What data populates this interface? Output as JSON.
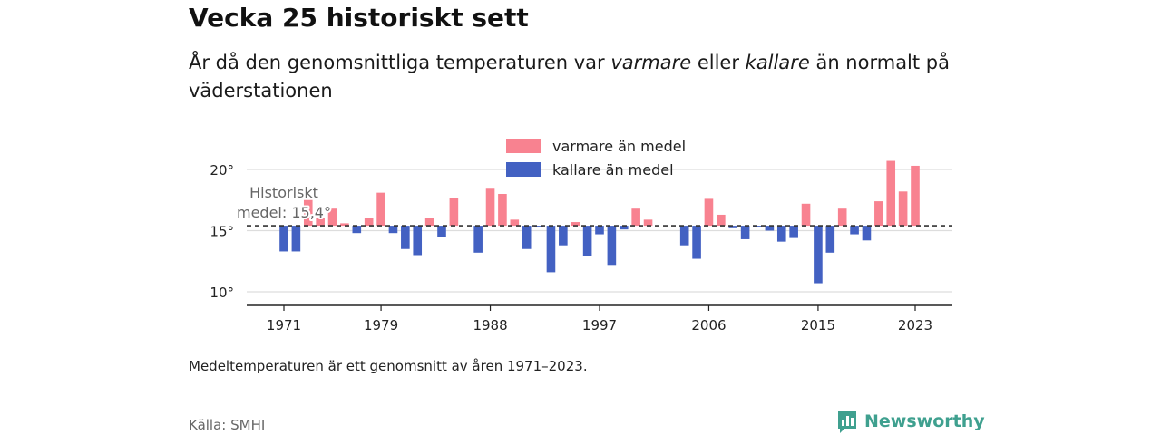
{
  "title": "Vecka 25 historiskt sett",
  "subtitle": {
    "part1": "År då den genomsnittliga temperaturen var ",
    "warm_word": "varmare",
    "part2": " eller ",
    "cold_word": "kallare",
    "part3": " än normalt på väderstationen"
  },
  "note": "Medeltemperaturen är ett genomsnitt av åren 1971–2023.",
  "source": "Källa: SMHI",
  "brand": {
    "name": "Newsworthy",
    "icon": "newsworthy-logo-icon",
    "color": "#3fa08f"
  },
  "colors": {
    "warm": "#f88290",
    "cold": "#4361c2",
    "grid": "#dddddd",
    "mean_line": "#333333"
  },
  "chart_data": {
    "type": "bar",
    "baseline": 15.4,
    "baseline_label": [
      "Historiskt",
      "medel: 15,4°"
    ],
    "x": [
      1971,
      1972,
      1973,
      1974,
      1975,
      1976,
      1977,
      1978,
      1979,
      1980,
      1981,
      1982,
      1983,
      1984,
      1985,
      1986,
      1987,
      1988,
      1989,
      1990,
      1991,
      1992,
      1993,
      1994,
      1995,
      1996,
      1997,
      1998,
      1999,
      2000,
      2001,
      2002,
      2003,
      2004,
      2005,
      2006,
      2007,
      2008,
      2009,
      2010,
      2011,
      2012,
      2013,
      2014,
      2015,
      2016,
      2017,
      2018,
      2019,
      2020,
      2021,
      2022,
      2023
    ],
    "values": [
      13.3,
      13.3,
      17.5,
      16.0,
      16.8,
      15.6,
      14.8,
      16.0,
      18.1,
      14.8,
      13.5,
      13.0,
      16.0,
      14.5,
      17.7,
      15.4,
      13.2,
      18.5,
      18.0,
      15.9,
      13.5,
      15.3,
      11.6,
      13.8,
      15.7,
      12.9,
      14.7,
      12.2,
      15.1,
      16.8,
      15.9,
      15.4,
      15.4,
      13.8,
      12.7,
      17.6,
      16.3,
      15.2,
      14.3,
      15.3,
      15.0,
      14.1,
      14.4,
      17.2,
      10.7,
      13.2,
      16.8,
      14.7,
      14.2,
      17.4,
      20.7,
      18.2,
      20.3
    ],
    "series": [
      {
        "name": "varmare än medel"
      },
      {
        "name": "kallare än medel"
      }
    ],
    "x_ticks": [
      1971,
      1979,
      1988,
      1997,
      2006,
      2015,
      2023
    ],
    "y_ticks": [
      10,
      15,
      20
    ],
    "y_tick_labels": [
      "10°",
      "15°",
      "20°"
    ],
    "ylim": [
      9.0,
      22.5
    ],
    "grid": true,
    "legend_position": "top-center"
  }
}
